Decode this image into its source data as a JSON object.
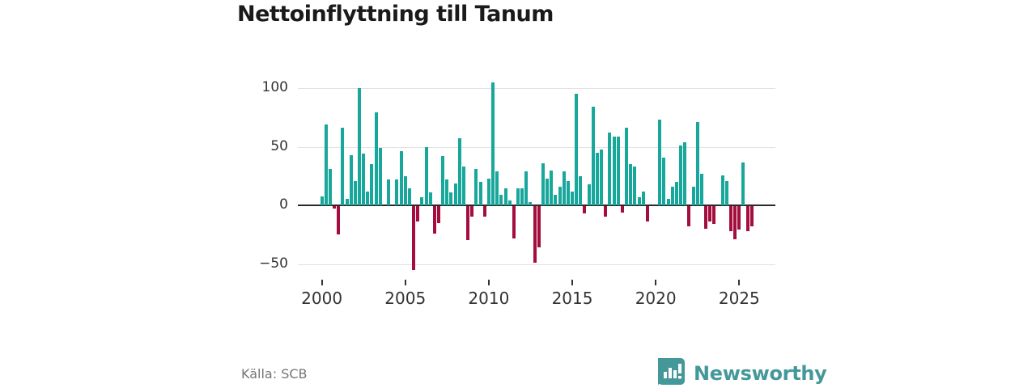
{
  "title": "Nettoinflyttning till Tanum",
  "source": "Källa: SCB",
  "branding": {
    "name": "Newsworthy",
    "logo_icon": "bar-chart-speech-bubble-icon",
    "color": "#45989a"
  },
  "colors": {
    "positive": "#18a79b",
    "negative": "#a30e3e",
    "grid": "#e2e2e2",
    "zero_axis": "#2b2b2b",
    "text": "#333333",
    "muted_text": "#757575"
  },
  "chart_data": {
    "type": "bar",
    "title": "Nettoinflyttning till Tanum",
    "xlabel": "",
    "ylabel": "",
    "frequency": "quarterly",
    "start_period": "2000-Q1",
    "end_period": "2025-Q4",
    "x_tick_years": [
      2000,
      2005,
      2010,
      2015,
      2020,
      2025
    ],
    "y_ticks": [
      100,
      50,
      0,
      -50
    ],
    "ylim": [
      -62,
      112
    ],
    "grid": "horizontal-light",
    "legend": "none",
    "values": [
      8,
      69,
      31,
      -2,
      -24,
      66,
      6,
      43,
      21,
      100,
      44,
      12,
      35,
      79,
      49,
      0,
      22,
      0,
      22,
      46,
      25,
      15,
      -54,
      -13,
      7,
      50,
      11,
      -23,
      -14,
      42,
      22,
      11,
      19,
      57,
      33,
      -29,
      -9,
      31,
      20,
      -9,
      23,
      105,
      29,
      9,
      15,
      4,
      -27,
      15,
      15,
      29,
      3,
      -48,
      -35,
      36,
      23,
      30,
      9,
      16,
      29,
      21,
      12,
      95,
      25,
      -6,
      18,
      84,
      45,
      48,
      -9,
      62,
      59,
      59,
      -5,
      66,
      35,
      33,
      7,
      12,
      -13,
      0,
      0,
      73,
      41,
      6,
      16,
      20,
      51,
      54,
      -17,
      16,
      71,
      27,
      -19,
      -13,
      -15,
      0,
      26,
      21,
      -21,
      -28,
      -20,
      37,
      -21,
      -17
    ]
  }
}
